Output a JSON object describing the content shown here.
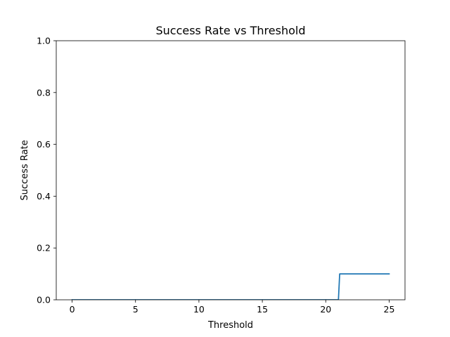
{
  "chart_data": {
    "type": "line",
    "title": "Success Rate vs Threshold",
    "xlabel": "Threshold",
    "ylabel": "Success Rate",
    "xlim": [
      -1.25,
      26.25
    ],
    "ylim": [
      0.0,
      1.0
    ],
    "xticks": [
      0,
      5,
      10,
      15,
      20,
      25
    ],
    "xtick_labels": [
      "0",
      "5",
      "10",
      "15",
      "20",
      "25"
    ],
    "yticks": [
      0.0,
      0.2,
      0.4,
      0.6,
      0.8,
      1.0
    ],
    "ytick_labels": [
      "0.0",
      "0.2",
      "0.4",
      "0.6",
      "0.8",
      "1.0"
    ],
    "grid": false,
    "series": [
      {
        "color": "#1f77b4",
        "x": [
          0,
          1,
          2,
          3,
          4,
          5,
          6,
          7,
          8,
          9,
          10,
          11,
          12,
          13,
          14,
          15,
          16,
          17,
          18,
          19,
          20,
          21,
          21.1,
          22,
          23,
          24,
          25
        ],
        "y": [
          0,
          0,
          0,
          0,
          0,
          0,
          0,
          0,
          0,
          0,
          0,
          0,
          0,
          0,
          0,
          0,
          0,
          0,
          0,
          0,
          0,
          0,
          0.1,
          0.1,
          0.1,
          0.1,
          0.1
        ]
      }
    ]
  }
}
